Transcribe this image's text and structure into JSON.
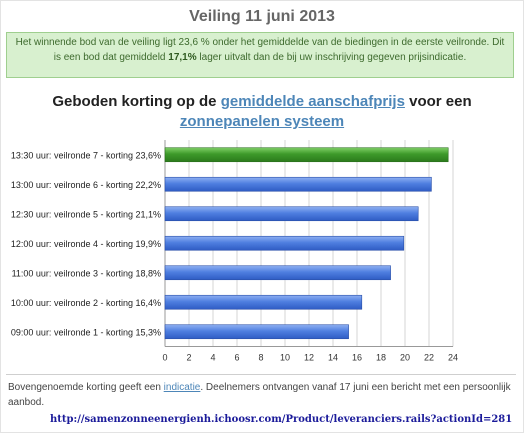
{
  "page_title": "Veiling 11 juni 2013",
  "notice": {
    "part1": "Het winnende bod van de veiling ligt 23,6 % onder het gemiddelde van de biedingen in de eerste veilronde. Dit is een bod dat gemiddeld ",
    "highlight": "17,1%",
    "part2": " lager uitvalt dan de bij uw inschrijving gegeven prijsindicatie."
  },
  "chart_heading": {
    "part1": "Geboden korting op de ",
    "link1": "gemiddelde aanschafprijs",
    "part2": " voor een ",
    "link2": "zonnepanelen systeem"
  },
  "chart_data": {
    "type": "bar",
    "orientation": "horizontal",
    "categories": [
      "13:30 uur: veilronde 7 - korting 23,6%",
      "13:00 uur: veilronde 6 - korting 22,2%",
      "12:30 uur: veilronde 5 - korting 21,1%",
      "12:00 uur: veilronde 4 - korting 19,9%",
      "11:00 uur: veilronde 3 - korting 18,8%",
      "10:00 uur: veilronde 2 - korting 16,4%",
      "09:00 uur: veilronde 1 - korting 15,3%"
    ],
    "values": [
      23.6,
      22.2,
      21.1,
      19.9,
      18.8,
      16.4,
      15.3
    ],
    "highlight_index": 0,
    "xlim": [
      0,
      24
    ],
    "xticks": [
      "0",
      "2",
      "4",
      "6",
      "8",
      "10",
      "12",
      "14",
      "16",
      "18",
      "20",
      "22",
      "24"
    ],
    "grid": true,
    "colors": {
      "highlight": "#3d9a2a",
      "bar": "#4f7fe0"
    }
  },
  "footer": {
    "part1": "Bovengenoemde korting geeft een ",
    "link": "indicatie",
    "part2": ". Deelnemers ontvangen vanaf 17 juni een bericht met een persoonlijk aanbod."
  },
  "url": "http://samenzonneenergienh.ichoosr.com/Product/leveranciers.rails?actionId=281"
}
